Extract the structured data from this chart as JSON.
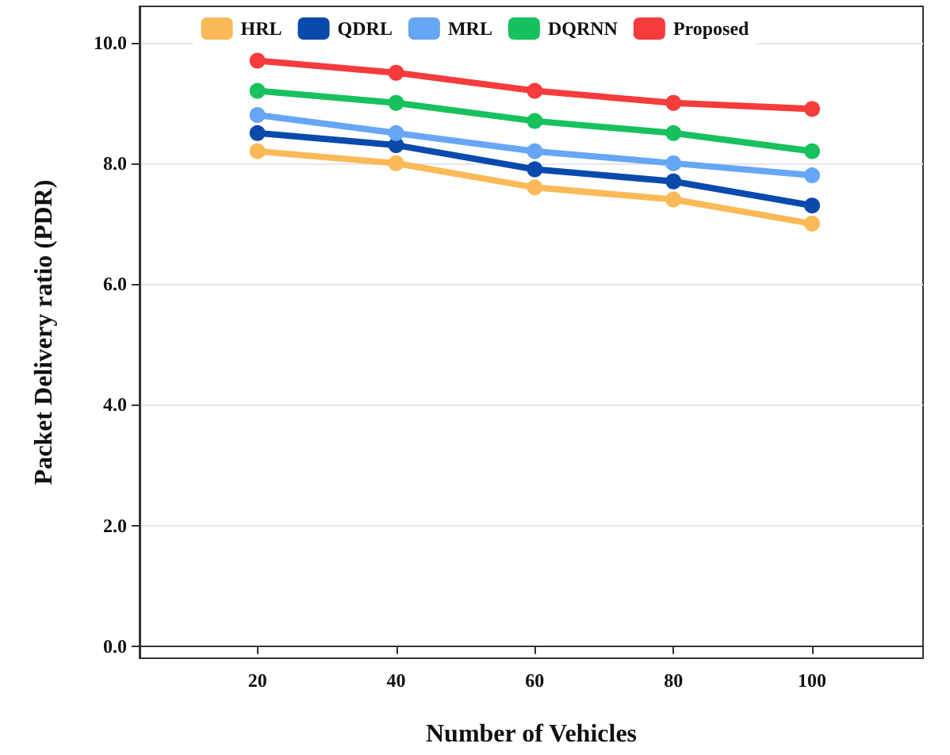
{
  "chart_data": {
    "type": "line",
    "xlabel": "Number of Vehicles",
    "ylabel": "Packet Delivery ratio (PDR)",
    "x": [
      20,
      40,
      60,
      80,
      100
    ],
    "xlim": [
      3,
      116
    ],
    "xticks": [
      20,
      40,
      60,
      80,
      100
    ],
    "ylim": [
      -0.2,
      10.6
    ],
    "yticks": [
      {
        "value": 0,
        "label": "0.0"
      },
      {
        "value": 2,
        "label": "2.0"
      },
      {
        "value": 4,
        "label": "4.0"
      },
      {
        "value": 6,
        "label": "6.0"
      },
      {
        "value": 8,
        "label": "8.0"
      },
      {
        "value": 10,
        "label": "10.0"
      }
    ],
    "grid": "y",
    "legend": "top",
    "marker": "circle",
    "line_style": "solid",
    "series": [
      {
        "name": "HRL",
        "color": "#fbb957",
        "values": [
          8.2,
          8.0,
          7.6,
          7.4,
          7.0
        ]
      },
      {
        "name": "QDRL",
        "color": "#0a4aad",
        "values": [
          8.5,
          8.3,
          7.9,
          7.7,
          7.3
        ]
      },
      {
        "name": "MRL",
        "color": "#66a6f5",
        "values": [
          8.8,
          8.5,
          8.2,
          8.0,
          7.8
        ]
      },
      {
        "name": "DQRNN",
        "color": "#17c15e",
        "values": [
          9.2,
          9.0,
          8.7,
          8.5,
          8.2
        ]
      },
      {
        "name": "Proposed",
        "color": "#f53b3b",
        "values": [
          9.7,
          9.5,
          9.2,
          9.0,
          8.9
        ]
      }
    ]
  }
}
